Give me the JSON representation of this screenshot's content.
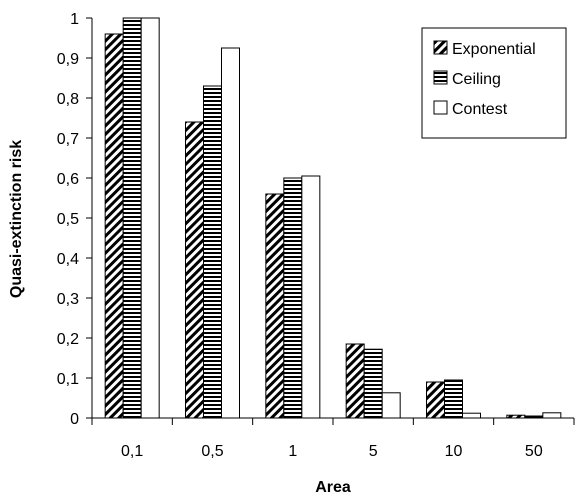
{
  "chart_data": {
    "type": "bar",
    "categories": [
      "0,1",
      "0,5",
      "1",
      "5",
      "10",
      "50"
    ],
    "series": [
      {
        "name": "Exponential",
        "pattern": "diagonal-hatch",
        "values": [
          0.96,
          0.74,
          0.56,
          0.185,
          0.09,
          0.007
        ]
      },
      {
        "name": "Ceiling",
        "pattern": "horizontal-hatch",
        "values": [
          1.0,
          0.83,
          0.6,
          0.172,
          0.095,
          0.005
        ]
      },
      {
        "name": "Contest",
        "pattern": "white",
        "values": [
          1.0,
          0.925,
          0.605,
          0.063,
          0.012,
          0.013
        ]
      }
    ],
    "title": "",
    "xlabel": "Area",
    "ylabel": "Quasi-extinction risk",
    "ylim": [
      0,
      1
    ],
    "yticks": [
      "0",
      "0,1",
      "0,2",
      "0,3",
      "0,4",
      "0,5",
      "0,6",
      "0,7",
      "0,8",
      "0,9",
      "1"
    ],
    "grid": false,
    "legend_position": "top-right",
    "colors": {
      "stroke": "#000000",
      "background": "#ffffff"
    }
  }
}
